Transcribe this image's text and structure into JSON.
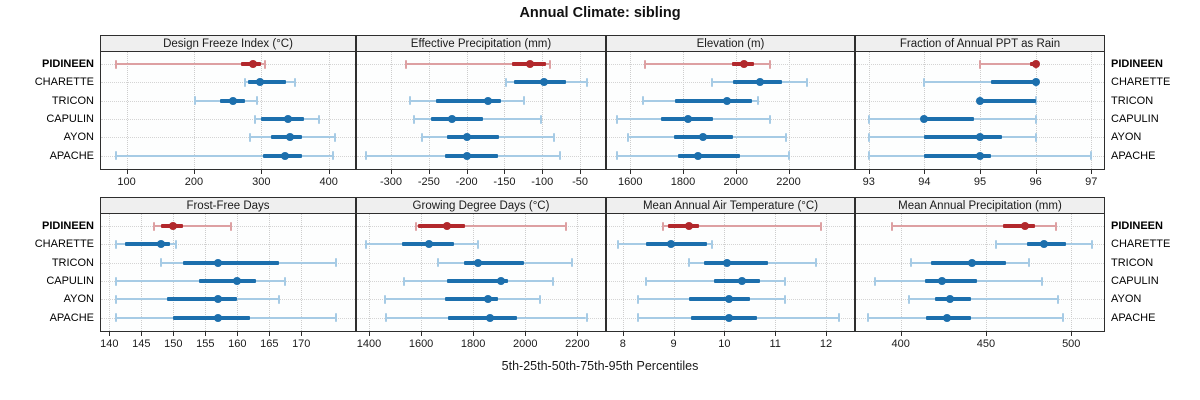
{
  "title": "Annual Climate: sibling",
  "footer": "5th-25th-50th-75th-95th Percentiles",
  "stations": [
    "PIDINEEN",
    "CHARETTE",
    "TRICON",
    "CAPULIN",
    "AYON",
    "APACHE"
  ],
  "highlight_station": "PIDINEEN",
  "percentile_labels": [
    "5th",
    "25th",
    "50th",
    "75th",
    "95th"
  ],
  "colors": {
    "highlight": "#b2282c",
    "highlight_light": "#dda0a2",
    "normal": "#1c6fad",
    "normal_light": "#a6cbe5",
    "grid": "#cdcdcd",
    "header_bg": "#efefef",
    "panel_border": "#2e2e2e",
    "text": "#1a1a1a"
  },
  "chart_data": {
    "type": "dot-interval",
    "note": "horizontal 5-25-50-75-95 percentile intervals per station; dot = median",
    "layout": {
      "rows": 2,
      "cols": 4,
      "legend": "none",
      "grid": "dotted"
    },
    "panels": [
      {
        "title": "Design Freeze Index (°C)",
        "ticks": [
          100,
          200,
          300,
          400
        ],
        "xlim": [
          62,
          439
        ],
        "series": [
          {
            "name": "PIDINEEN",
            "values": [
              85,
              270,
              287,
              300,
              306
            ]
          },
          {
            "name": "CHARETTE",
            "values": [
              275,
              280,
              298,
              337,
              350
            ]
          },
          {
            "name": "TRICON",
            "values": [
              201,
              239,
              258,
              275,
              293
            ]
          },
          {
            "name": "CAPULIN",
            "values": [
              290,
              300,
              339,
              364,
              386
            ]
          },
          {
            "name": "AYON",
            "values": [
              283,
              314,
              342,
              361,
              410
            ]
          },
          {
            "name": "APACHE",
            "values": [
              85,
              302,
              335,
              360,
              406
            ]
          }
        ]
      },
      {
        "title": "Effective Precipitation (mm)",
        "ticks": [
          -300,
          -250,
          -200,
          -150,
          -100,
          -50
        ],
        "xlim": [
          -345,
          -17
        ],
        "series": [
          {
            "name": "PIDINEEN",
            "values": [
              -280,
              -140,
              -116,
              -95,
              -90
            ]
          },
          {
            "name": "CHARETTE",
            "values": [
              -148,
              -137,
              -98,
              -68,
              -41
            ]
          },
          {
            "name": "TRICON",
            "values": [
              -275,
              -240,
              -172,
              -154,
              -124
            ]
          },
          {
            "name": "CAPULIN",
            "values": [
              -270,
              -247,
              -219,
              -179,
              -102
            ]
          },
          {
            "name": "AYON",
            "values": [
              -259,
              -226,
              -200,
              -157,
              -85
            ]
          },
          {
            "name": "APACHE",
            "values": [
              -333,
              -229,
              -200,
              -159,
              -77
            ]
          }
        ]
      },
      {
        "title": "Elevation (m)",
        "ticks": [
          1600,
          1800,
          2000,
          2200
        ],
        "xlim": [
          1512,
          2448
        ],
        "series": [
          {
            "name": "PIDINEEN",
            "values": [
              1655,
              1985,
              2030,
              2070,
              2130
            ]
          },
          {
            "name": "CHARETTE",
            "values": [
              1910,
              1990,
              2090,
              2175,
              2270
            ]
          },
          {
            "name": "TRICON",
            "values": [
              1650,
              1770,
              1965,
              2060,
              2085
            ]
          },
          {
            "name": "CAPULIN",
            "values": [
              1550,
              1715,
              1818,
              1915,
              2130
            ]
          },
          {
            "name": "AYON",
            "values": [
              1590,
              1765,
              1875,
              1990,
              2190
            ]
          },
          {
            "name": "APACHE",
            "values": [
              1550,
              1780,
              1857,
              2015,
              2200
            ]
          }
        ]
      },
      {
        "title": "Fraction of Annual PPT as Rain",
        "ticks": [
          93,
          94,
          95,
          96,
          97
        ],
        "xlim": [
          92.77,
          97.23
        ],
        "series": [
          {
            "name": "PIDINEEN",
            "values": [
              95,
              95.9,
              96,
              96,
              96
            ]
          },
          {
            "name": "CHARETTE",
            "values": [
              94,
              95.2,
              96,
              96,
              96
            ]
          },
          {
            "name": "TRICON",
            "values": [
              95,
              95,
              95,
              96,
              96
            ]
          },
          {
            "name": "CAPULIN",
            "values": [
              93,
              94,
              94,
              94.9,
              96
            ]
          },
          {
            "name": "AYON",
            "values": [
              93,
              94,
              95,
              95.4,
              96
            ]
          },
          {
            "name": "APACHE",
            "values": [
              93,
              94,
              95,
              95.2,
              97
            ]
          }
        ]
      },
      {
        "title": "Frost-Free Days",
        "ticks": [
          140,
          145,
          150,
          155,
          160,
          165,
          170
        ],
        "xlim": [
          138.7,
          178.4
        ],
        "series": [
          {
            "name": "PIDINEEN",
            "values": [
              147,
              148,
              150,
              151.5,
              159
            ]
          },
          {
            "name": "CHARETTE",
            "values": [
              141,
              142.5,
              148,
              149.5,
              150.5
            ]
          },
          {
            "name": "TRICON",
            "values": [
              148,
              151.5,
              157,
              166.5,
              175.5
            ]
          },
          {
            "name": "CAPULIN",
            "values": [
              141,
              154,
              160,
              163,
              167.5
            ]
          },
          {
            "name": "AYON",
            "values": [
              141,
              149,
              157,
              160,
              166.5
            ]
          },
          {
            "name": "APACHE",
            "values": [
              141,
              150,
              157,
              162,
              175.5
            ]
          }
        ]
      },
      {
        "title": "Growing Degree Days (°C)",
        "ticks": [
          1400,
          1600,
          1800,
          2000,
          2200
        ],
        "xlim": [
          1354,
          2306
        ],
        "series": [
          {
            "name": "PIDINEEN",
            "values": [
              1580,
              1590,
              1700,
              1770,
              2155
            ]
          },
          {
            "name": "CHARETTE",
            "values": [
              1390,
              1525,
              1630,
              1725,
              1820
            ]
          },
          {
            "name": "TRICON",
            "values": [
              1665,
              1765,
              1820,
              1995,
              2180
            ]
          },
          {
            "name": "CAPULIN",
            "values": [
              1535,
              1700,
              1905,
              1935,
              2105
            ]
          },
          {
            "name": "AYON",
            "values": [
              1460,
              1690,
              1855,
              1895,
              2055
            ]
          },
          {
            "name": "APACHE",
            "values": [
              1465,
              1705,
              1865,
              1970,
              2235
            ]
          }
        ]
      },
      {
        "title": "Mean Annual Air Temperature (°C)",
        "ticks": [
          8,
          9,
          10,
          11,
          12
        ],
        "xlim": [
          7.69,
          12.55
        ],
        "series": [
          {
            "name": "PIDINEEN",
            "values": [
              8.8,
              8.9,
              9.3,
              9.5,
              11.9
            ]
          },
          {
            "name": "CHARETTE",
            "values": [
              7.9,
              8.45,
              8.95,
              9.65,
              9.75
            ]
          },
          {
            "name": "TRICON",
            "values": [
              9.3,
              9.6,
              10.05,
              10.85,
              11.8
            ]
          },
          {
            "name": "CAPULIN",
            "values": [
              8.45,
              9.8,
              10.35,
              10.7,
              11.2
            ]
          },
          {
            "name": "AYON",
            "values": [
              8.3,
              9.3,
              10.1,
              10.5,
              11.2
            ]
          },
          {
            "name": "APACHE",
            "values": [
              8.3,
              9.35,
              10.1,
              10.65,
              12.25
            ]
          }
        ]
      },
      {
        "title": "Mean Annual Precipitation (mm)",
        "ticks": [
          400,
          450,
          500
        ],
        "xlim": [
          373.8,
          519.2
        ],
        "series": [
          {
            "name": "PIDINEEN",
            "values": [
              395,
              460,
              473,
              479,
              491
            ]
          },
          {
            "name": "CHARETTE",
            "values": [
              456,
              474,
              484,
              497,
              512
            ]
          },
          {
            "name": "TRICON",
            "values": [
              406,
              418,
              442,
              462,
              475
            ]
          },
          {
            "name": "CAPULIN",
            "values": [
              385,
              414,
              424,
              445,
              483
            ]
          },
          {
            "name": "AYON",
            "values": [
              405,
              420,
              429,
              441,
              492
            ]
          },
          {
            "name": "APACHE",
            "values": [
              381,
              415,
              427,
              441,
              495
            ]
          }
        ]
      }
    ]
  }
}
